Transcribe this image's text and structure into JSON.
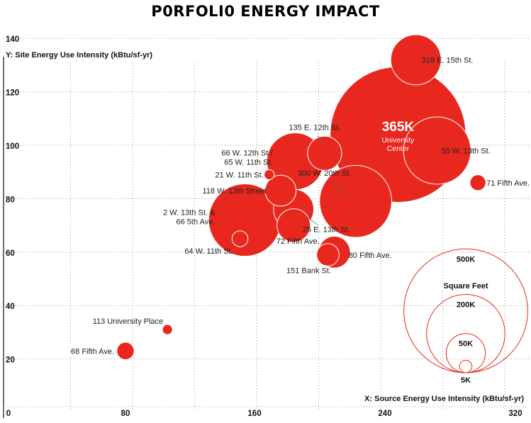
{
  "chart_data": {
    "type": "scatter",
    "title": "P0RFOLI0 ENERGY IMPACT",
    "xlabel": "X: Source Energy Use Intensity (kBtu/sf-yr)",
    "ylabel": "Y: Site Energy Use Intensity (kBtu/sf-yr)",
    "xlim": [
      0,
      330
    ],
    "ylim": [
      10,
      145
    ],
    "x_ticks": [
      "0",
      "80",
      "160",
      "240",
      "320"
    ],
    "y_ticks": [
      "20",
      "40",
      "60",
      "80",
      "100",
      "120",
      "140"
    ],
    "grid": "dotted",
    "points": [
      {
        "name": "318 E. 15th St.",
        "x": 259,
        "y": 132,
        "sqft": 50
      },
      {
        "name": "University Center",
        "big_label": "365K",
        "x": 248,
        "y": 104,
        "sqft": 365
      },
      {
        "name": "55 W. 13th St.",
        "x": 272,
        "y": 98,
        "sqft": 90
      },
      {
        "name": "135 E. 12th St.",
        "x": 203,
        "y": 97,
        "sqft": 23
      },
      {
        "name": "66 W. 12th St./\n65 W. 11th St.",
        "x": 185,
        "y": 94,
        "sqft": 64
      },
      {
        "name": "300 W. 20th St.",
        "x": 222,
        "y": 79,
        "sqft": 103
      },
      {
        "name": "21 W. 11th St.",
        "x": 169,
        "y": 89,
        "sqft": 2
      },
      {
        "name": "118 W. 13th Street",
        "x": 176,
        "y": 83,
        "sqft": 19
      },
      {
        "name": "2 W. 13th St. &\n66 5th Ave.",
        "x": 154,
        "y": 72,
        "sqft": 104
      },
      {
        "name": "64 W. 11th St.",
        "x": 151,
        "y": 65,
        "sqft": 5
      },
      {
        "name": "25 E. 13th St.",
        "x": 184,
        "y": 76,
        "sqft": 32
      },
      {
        "name": "72 Fifth Ave.",
        "x": 184,
        "y": 70,
        "sqft": 22
      },
      {
        "name": "80 Fifth Ave.",
        "x": 209,
        "y": 60,
        "sqft": 20
      },
      {
        "name": "151 Bank St.",
        "x": 205,
        "y": 59,
        "sqft": 10
      },
      {
        "name": "71 Fifth Ave.",
        "x": 297,
        "y": 86,
        "sqft": 5
      },
      {
        "name": "113 University Place",
        "x": 106,
        "y": 31,
        "sqft": 2
      },
      {
        "name": "68 Fifth Ave.",
        "x": 80,
        "y": 23,
        "sqft": 6
      }
    ],
    "size_legend": {
      "title": "Square Feet",
      "entries": [
        {
          "label": "500K",
          "sqft": 500
        },
        {
          "label": "200K",
          "sqft": 200
        },
        {
          "label": "50K",
          "sqft": 50
        },
        {
          "label": "5K",
          "sqft": 5
        }
      ]
    },
    "colors": {
      "bubble": "#e8281e",
      "bubble_stroke": "#ffffff",
      "legend_stroke": "#e8281e"
    }
  }
}
